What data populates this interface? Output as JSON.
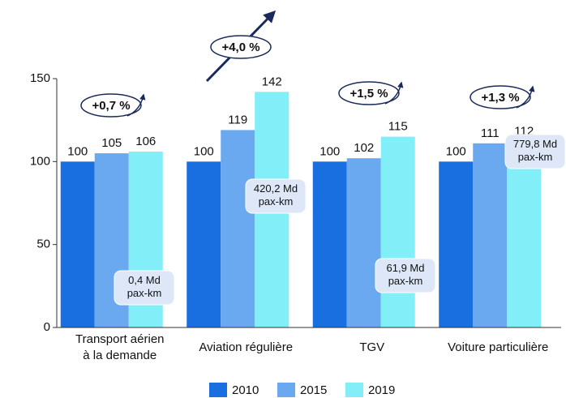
{
  "chart_data": {
    "type": "bar",
    "categories": [
      "Transport aérien\nà la demande",
      "Aviation régulière",
      "TGV",
      "Voiture particulière"
    ],
    "series": [
      {
        "name": "2010",
        "color": "#1a6fe0",
        "values": [
          100,
          100,
          100,
          100
        ]
      },
      {
        "name": "2015",
        "color": "#6aa8f0",
        "values": [
          105,
          119,
          102,
          111
        ]
      },
      {
        "name": "2019",
        "color": "#82eef7",
        "values": [
          106,
          142,
          115,
          112
        ]
      }
    ],
    "ylim": [
      0,
      150
    ],
    "yticks": [
      0,
      50,
      100,
      150
    ],
    "growth_labels": [
      "+0,7 %",
      "+4,0 %",
      "+1,5 %",
      "+1,3 %"
    ],
    "volume_labels": [
      "0,4 Md\npax-km",
      "420,2 Md\npax-km",
      "61,9 Md\npax-km",
      "779,8 Md\npax-km"
    ]
  }
}
